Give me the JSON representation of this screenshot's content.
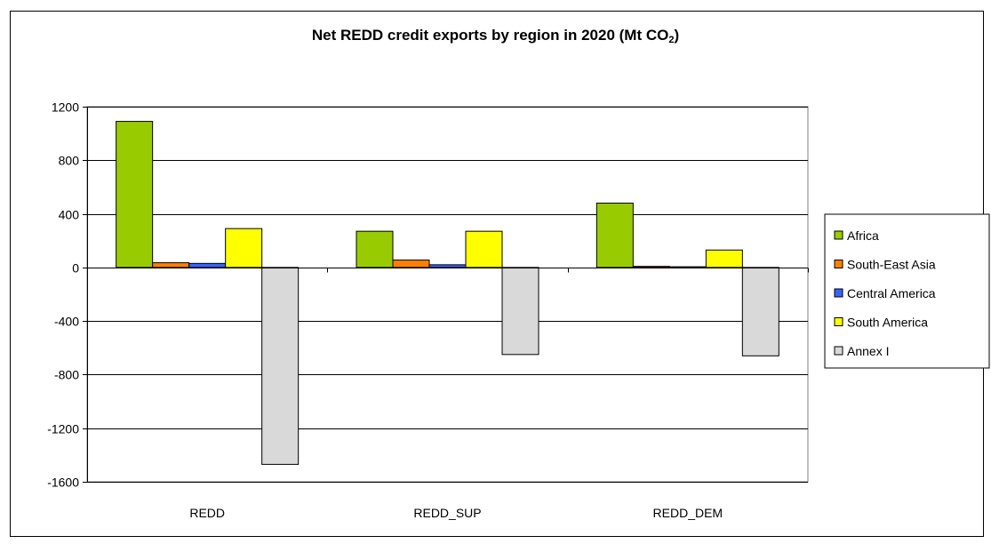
{
  "chart_data": {
    "type": "bar",
    "title_main": "Net REDD credit exports by region in 2020 (Mt CO",
    "title_sub": "2",
    "title_end": ")",
    "categories": [
      "REDD",
      "REDD_SUP",
      "REDD_DEM"
    ],
    "series": [
      {
        "name": "Africa",
        "color": "#99CC00",
        "values": [
          1090,
          270,
          480
        ]
      },
      {
        "name": "South-East Asia",
        "color": "#FF8000",
        "values": [
          35,
          55,
          8
        ]
      },
      {
        "name": "Central America",
        "color": "#3366FF",
        "values": [
          30,
          20,
          5
        ]
      },
      {
        "name": "South America",
        "color": "#FFFF00",
        "values": [
          290,
          270,
          130
        ]
      },
      {
        "name": "Annex I",
        "color": "#D9D9D9",
        "values": [
          -1470,
          -650,
          -660
        ]
      }
    ],
    "ylim": [
      -1600,
      1200
    ],
    "yticks": [
      1200,
      800,
      400,
      0,
      -400,
      -800,
      -1200,
      -1600
    ],
    "ytick_labels": [
      "1200",
      "800",
      "400",
      "0",
      "-400",
      "-800",
      "-1200",
      "-1600"
    ],
    "grid": true,
    "legend_position": "right"
  }
}
